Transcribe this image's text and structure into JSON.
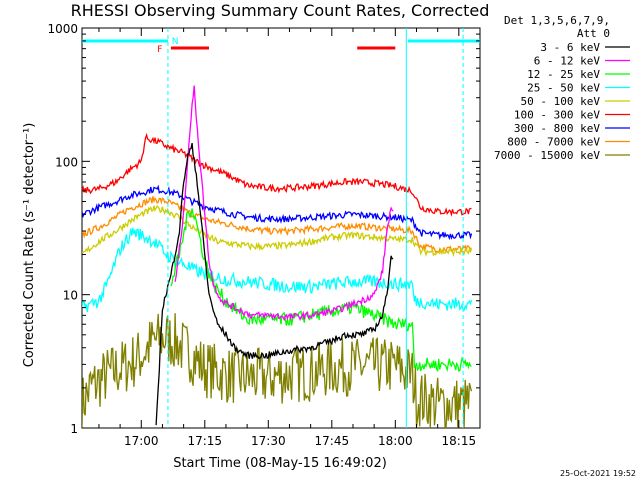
{
  "chart_data": {
    "type": "line",
    "title": "RHESSI Observing Summary Count Rates, Corrected",
    "xlabel": "Start Time (08-May-15 16:49:02)",
    "ylabel": "Corrected Count Rate (s⁻¹ detector⁻¹)",
    "y_scale": "log",
    "ylim": [
      1,
      1000
    ],
    "y_ticks": [
      "1",
      "10",
      "100",
      "1000"
    ],
    "xlim_minutes": [
      -14,
      80
    ],
    "x_ticks": [
      {
        "label": "17:00",
        "t": 0
      },
      {
        "label": "17:15",
        "t": 15
      },
      {
        "label": "17:30",
        "t": 30
      },
      {
        "label": "17:45",
        "t": 45
      },
      {
        "label": "18:00",
        "t": 60
      },
      {
        "label": "18:15",
        "t": 75
      }
    ],
    "legend_header": [
      "Det 1,3,5,6,7,9,",
      "Att 0"
    ],
    "legend_position": "right",
    "series": [
      {
        "name": "3 - 6 keV",
        "color": "#000000",
        "points": [
          [
            3.5,
            1
          ],
          [
            4,
            2
          ],
          [
            5,
            8
          ],
          [
            7,
            14
          ],
          [
            9,
            30
          ],
          [
            10,
            70
          ],
          [
            11,
            110
          ],
          [
            12,
            130
          ],
          [
            13,
            80
          ],
          [
            14,
            40
          ],
          [
            15,
            20
          ],
          [
            16,
            10
          ],
          [
            18,
            6
          ],
          [
            20,
            5
          ],
          [
            22,
            4
          ],
          [
            25,
            3.5
          ],
          [
            30,
            3.5
          ],
          [
            35,
            3.8
          ],
          [
            40,
            4
          ],
          [
            45,
            4.5
          ],
          [
            48,
            5
          ],
          [
            52,
            5
          ],
          [
            55,
            5.5
          ],
          [
            57,
            7
          ],
          [
            58,
            10
          ],
          [
            59,
            20
          ],
          [
            59.5,
            18
          ]
        ]
      },
      {
        "name": "6 - 12 keV",
        "color": "#ff00ff",
        "points": [
          [
            8,
            12
          ],
          [
            10,
            40
          ],
          [
            11,
            110
          ],
          [
            12,
            260
          ],
          [
            12.5,
            350
          ],
          [
            13,
            220
          ],
          [
            14,
            90
          ],
          [
            15,
            40
          ],
          [
            16,
            18
          ],
          [
            17,
            12
          ],
          [
            19,
            9
          ],
          [
            22,
            8
          ],
          [
            26,
            7
          ],
          [
            30,
            7
          ],
          [
            35,
            6.8
          ],
          [
            40,
            7
          ],
          [
            45,
            7.5
          ],
          [
            48,
            8
          ],
          [
            52,
            9
          ],
          [
            55,
            10
          ],
          [
            57,
            15
          ],
          [
            58,
            30
          ],
          [
            59,
            45
          ],
          [
            59.5,
            40
          ]
        ]
      },
      {
        "name": "12 - 25 keV",
        "color": "#00ff00",
        "points": [
          [
            7,
            12
          ],
          [
            9,
            20
          ],
          [
            11,
            40
          ],
          [
            12,
            45
          ],
          [
            13,
            35
          ],
          [
            14,
            25
          ],
          [
            15,
            18
          ],
          [
            17,
            12
          ],
          [
            20,
            9
          ],
          [
            25,
            6.5
          ],
          [
            30,
            6.5
          ],
          [
            35,
            6.5
          ],
          [
            40,
            7
          ],
          [
            45,
            7.5
          ],
          [
            50,
            8
          ],
          [
            55,
            7
          ],
          [
            60,
            6
          ],
          [
            64,
            6
          ],
          [
            64.5,
            3
          ],
          [
            78,
            3
          ]
        ]
      },
      {
        "name": "25 - 50 keV",
        "color": "#00ffff",
        "points": [
          [
            -14,
            8
          ],
          [
            -10,
            9
          ],
          [
            -8,
            12
          ],
          [
            -5,
            22
          ],
          [
            -2,
            30
          ],
          [
            0,
            28
          ],
          [
            3,
            25
          ],
          [
            6,
            20
          ],
          [
            8,
            18
          ],
          [
            10,
            17
          ],
          [
            13,
            15
          ],
          [
            16,
            14
          ],
          [
            20,
            13
          ],
          [
            25,
            12.5
          ],
          [
            30,
            12
          ],
          [
            35,
            11.5
          ],
          [
            40,
            11.5
          ],
          [
            45,
            12
          ],
          [
            50,
            12.5
          ],
          [
            55,
            12.5
          ],
          [
            60,
            12
          ],
          [
            64,
            12
          ],
          [
            64.5,
            9
          ],
          [
            70,
            8.5
          ],
          [
            78,
            8.5
          ]
        ]
      },
      {
        "name": "50 - 100 keV",
        "color": "#cccc00",
        "points": [
          [
            -14,
            20
          ],
          [
            -10,
            25
          ],
          [
            -6,
            30
          ],
          [
            -3,
            35
          ],
          [
            0,
            40
          ],
          [
            3,
            44
          ],
          [
            6,
            43
          ],
          [
            9,
            38
          ],
          [
            12,
            32
          ],
          [
            15,
            28
          ],
          [
            18,
            25
          ],
          [
            22,
            24
          ],
          [
            26,
            23
          ],
          [
            30,
            23
          ],
          [
            35,
            23.5
          ],
          [
            40,
            25
          ],
          [
            45,
            27
          ],
          [
            50,
            28
          ],
          [
            55,
            27
          ],
          [
            60,
            26
          ],
          [
            64,
            26
          ],
          [
            66,
            21
          ],
          [
            70,
            21
          ],
          [
            78,
            21
          ]
        ]
      },
      {
        "name": "100 - 300 keV",
        "color": "#ff0000",
        "points": [
          [
            -14,
            60
          ],
          [
            -10,
            62
          ],
          [
            -6,
            70
          ],
          [
            -3,
            85
          ],
          [
            0,
            100
          ],
          [
            1,
            150
          ],
          [
            4,
            140
          ],
          [
            7,
            125
          ],
          [
            10,
            115
          ],
          [
            13,
            100
          ],
          [
            16,
            90
          ],
          [
            20,
            80
          ],
          [
            25,
            66
          ],
          [
            30,
            63
          ],
          [
            35,
            63
          ],
          [
            40,
            65
          ],
          [
            45,
            68
          ],
          [
            48,
            70
          ],
          [
            52,
            70
          ],
          [
            56,
            68
          ],
          [
            60,
            65
          ],
          [
            64,
            60
          ],
          [
            66,
            45
          ],
          [
            70,
            42
          ],
          [
            78,
            42
          ]
        ]
      },
      {
        "name": "300 - 800 keV",
        "color": "#0000ff",
        "points": [
          [
            -14,
            40
          ],
          [
            -10,
            45
          ],
          [
            -6,
            50
          ],
          [
            -3,
            55
          ],
          [
            0,
            58
          ],
          [
            3,
            62
          ],
          [
            6,
            60
          ],
          [
            9,
            56
          ],
          [
            12,
            50
          ],
          [
            15,
            46
          ],
          [
            18,
            43
          ],
          [
            22,
            40
          ],
          [
            26,
            38
          ],
          [
            30,
            37
          ],
          [
            35,
            37
          ],
          [
            40,
            38
          ],
          [
            45,
            39
          ],
          [
            50,
            40
          ],
          [
            55,
            39
          ],
          [
            60,
            38
          ],
          [
            64,
            36
          ],
          [
            66,
            29
          ],
          [
            70,
            28
          ],
          [
            78,
            28
          ]
        ]
      },
      {
        "name": "800 - 7000 keV",
        "color": "#ff8c00",
        "points": [
          [
            -14,
            28
          ],
          [
            -10,
            32
          ],
          [
            -6,
            38
          ],
          [
            -3,
            44
          ],
          [
            0,
            48
          ],
          [
            3,
            52
          ],
          [
            6,
            50
          ],
          [
            9,
            45
          ],
          [
            12,
            40
          ],
          [
            15,
            37
          ],
          [
            18,
            35
          ],
          [
            22,
            33
          ],
          [
            26,
            31
          ],
          [
            30,
            30
          ],
          [
            35,
            30
          ],
          [
            40,
            31
          ],
          [
            45,
            32
          ],
          [
            50,
            33
          ],
          [
            55,
            32
          ],
          [
            60,
            31
          ],
          [
            64,
            30
          ],
          [
            66,
            23
          ],
          [
            70,
            22
          ],
          [
            78,
            22
          ]
        ]
      },
      {
        "name": "7000 - 15000 keV",
        "color": "#808000",
        "points": [
          [
            -14,
            1.5
          ],
          [
            -12,
            2
          ],
          [
            -8,
            2.5
          ],
          [
            -5,
            2.8
          ],
          [
            -3,
            3
          ],
          [
            0,
            3.5
          ],
          [
            3,
            4.5
          ],
          [
            6,
            4.8
          ],
          [
            9,
            4.2
          ],
          [
            12,
            3.5
          ],
          [
            15,
            2.8
          ],
          [
            20,
            2.5
          ],
          [
            25,
            2.4
          ],
          [
            30,
            2.4
          ],
          [
            35,
            2.5
          ],
          [
            40,
            2.6
          ],
          [
            45,
            2.8
          ],
          [
            50,
            2.9
          ],
          [
            55,
            2.9
          ],
          [
            60,
            2.9
          ],
          [
            64,
            2.5
          ],
          [
            65,
            1.7
          ],
          [
            70,
            1.5
          ],
          [
            78,
            1.5
          ]
        ]
      }
    ],
    "vertical_lines_minutes": [
      6.3,
      62.6
    ],
    "flags": {
      "cyan_bars_minutes": [
        [
          -14,
          6.3
        ],
        [
          63,
          80
        ]
      ],
      "red_bars_minutes": [
        [
          7,
          16
        ],
        [
          51,
          60
        ]
      ],
      "labels": [
        "F",
        "N"
      ]
    },
    "footer": "25-Oct-2021 19:52"
  }
}
